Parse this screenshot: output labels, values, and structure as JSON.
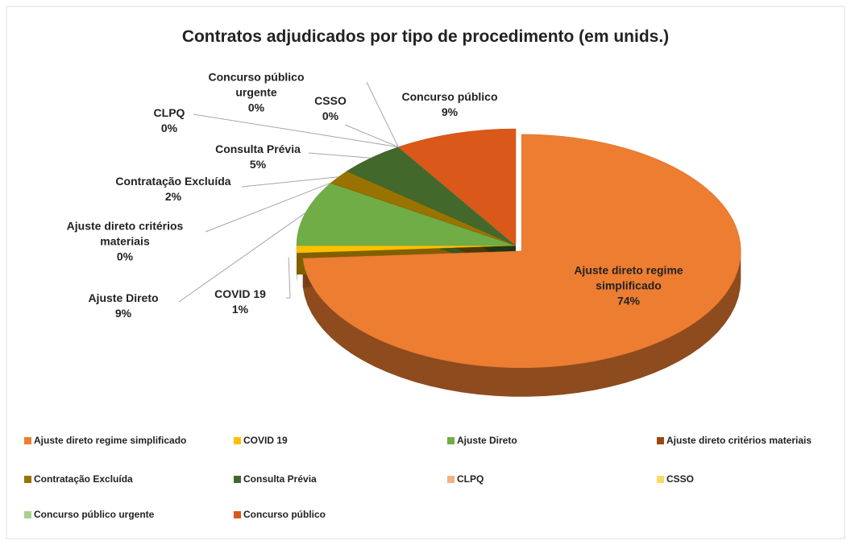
{
  "chart_data": {
    "type": "pie",
    "title": "Contratos adjudicados por tipo de procedimento  (em unids.)",
    "categories": [
      "Ajuste direto regime simplificado",
      "COVID 19",
      "Ajuste Direto",
      "Ajuste direto critérios materiais",
      "Contratação Excluída",
      "Consulta Prévia",
      "CLPQ",
      "CSSO",
      "Concurso público urgente",
      "Concurso público"
    ],
    "values": [
      74,
      1,
      9,
      0,
      2,
      5,
      0,
      0,
      0,
      9
    ],
    "value_labels": [
      "74%",
      "1%",
      "9%",
      "0%",
      "2%",
      "5%",
      "0%",
      "0%",
      "0%",
      "9%"
    ],
    "colors": [
      "#ed7d31",
      "#ffc000",
      "#70ad47",
      "#9e480e",
      "#997300",
      "#43682b",
      "#f4b183",
      "#ffd966",
      "#a9d18e",
      "#d9581a"
    ],
    "legend": "bottom"
  }
}
